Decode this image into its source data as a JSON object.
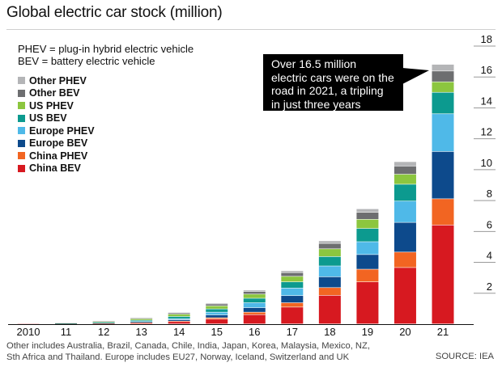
{
  "title": "Global electric car stock (million)",
  "definitions": [
    "PHEV = plug-in hybrid electric vehicle",
    "BEV = battery electric vehicle"
  ],
  "callout": [
    "Over 16.5 million",
    "electric cars were on the",
    "road in 2021, a tripling",
    "in just three years"
  ],
  "footnote": [
    "Other includes Australia, Brazil, Canada, Chile, India, Japan, Korea, Malaysia, Mexico, NZ,",
    "Sth Africa and Thailand. Europe includes EU27, Norway, Iceland, Switzerland and UK"
  ],
  "source": "SOURCE: IEA",
  "chart_data": {
    "type": "bar",
    "stacked": true,
    "categories": [
      "2010",
      "11",
      "12",
      "13",
      "14",
      "15",
      "16",
      "17",
      "18",
      "19",
      "20",
      "21"
    ],
    "ylim": [
      0,
      18
    ],
    "yticks": [
      2,
      4,
      6,
      8,
      10,
      12,
      14,
      16,
      18
    ],
    "axis_side": "right",
    "grid": false,
    "legend_position": "top-left",
    "series": [
      {
        "name": "China BEV",
        "color": "#d71920",
        "values": [
          0.01,
          0.02,
          0.04,
          0.08,
          0.15,
          0.31,
          0.6,
          1.09,
          1.85,
          2.72,
          3.65,
          6.4
        ]
      },
      {
        "name": "China PHEV",
        "color": "#f26522",
        "values": [
          0.0,
          0.0,
          0.01,
          0.01,
          0.03,
          0.09,
          0.16,
          0.28,
          0.5,
          0.82,
          1.0,
          1.7
        ]
      },
      {
        "name": "Europe BEV",
        "color": "#0d4a8c",
        "values": [
          0.0,
          0.01,
          0.02,
          0.04,
          0.09,
          0.18,
          0.29,
          0.46,
          0.7,
          0.95,
          1.92,
          3.06
        ]
      },
      {
        "name": "Europe PHEV",
        "color": "#4fb9e8",
        "values": [
          0.0,
          0.0,
          0.01,
          0.03,
          0.07,
          0.18,
          0.32,
          0.49,
          0.7,
          0.83,
          1.38,
          2.44
        ]
      },
      {
        "name": "US BEV",
        "color": "#0c9a8f",
        "values": [
          0.0,
          0.01,
          0.03,
          0.08,
          0.14,
          0.21,
          0.29,
          0.4,
          0.61,
          0.86,
          1.09,
          1.39
        ]
      },
      {
        "name": "US PHEV",
        "color": "#8cc63f",
        "values": [
          0.0,
          0.01,
          0.04,
          0.09,
          0.15,
          0.2,
          0.27,
          0.36,
          0.5,
          0.59,
          0.65,
          0.68
        ]
      },
      {
        "name": "Other BEV",
        "color": "#6d6e70",
        "values": [
          0.0,
          0.01,
          0.03,
          0.05,
          0.08,
          0.12,
          0.17,
          0.24,
          0.35,
          0.45,
          0.53,
          0.7
        ]
      },
      {
        "name": "Other PHEV",
        "color": "#b4b5b7",
        "values": [
          0.0,
          0.0,
          0.01,
          0.02,
          0.03,
          0.06,
          0.09,
          0.12,
          0.17,
          0.23,
          0.28,
          0.43
        ]
      }
    ]
  }
}
